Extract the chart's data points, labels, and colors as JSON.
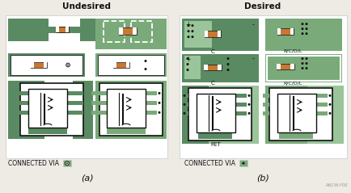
{
  "bg_color": "#eeebe5",
  "green_dark": "#5a8a62",
  "green_mid": "#7aaa7a",
  "green_light": "#9ac49a",
  "orange_comp": "#c87832",
  "white": "#ffffff",
  "black": "#111111",
  "gray_light": "#c8c8c8",
  "title_left": "Undesired",
  "title_right": "Desired",
  "label_a": "(a)",
  "label_b": "(b)",
  "connected_via": "CONNECTED VIA",
  "fig_id": "AN136-F08"
}
